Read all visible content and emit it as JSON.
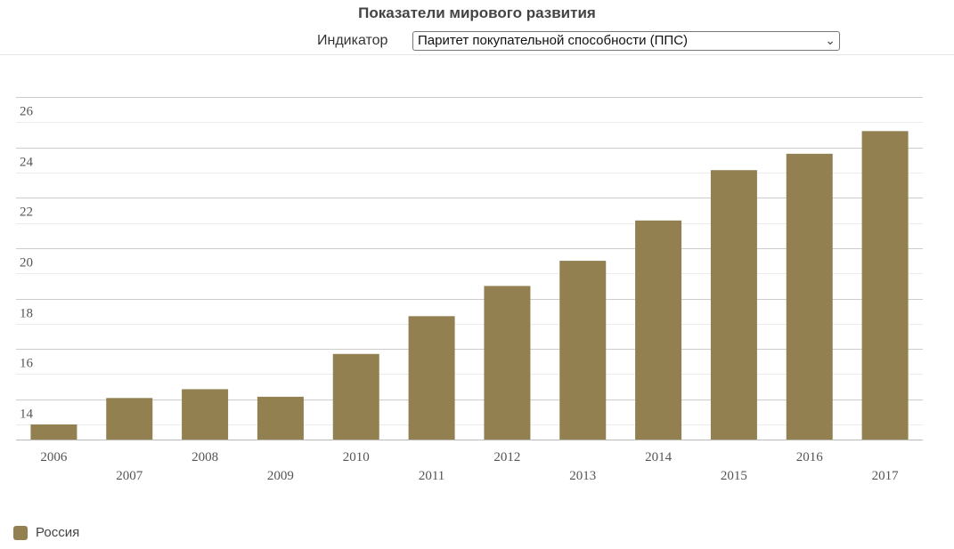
{
  "header": {
    "title": "Показатели мирового развития",
    "indicator_label": "Индикатор",
    "indicator_value": "Паритет покупательной способности (ППС)"
  },
  "colors": {
    "bar": "#928050",
    "grid_major": "#cccccc",
    "grid_minor": "#ececec",
    "axis": "#bbbbbb"
  },
  "chart_data": {
    "type": "bar",
    "title": "Показатели мирового развития",
    "xlabel": "",
    "ylabel": "",
    "categories": [
      "2006",
      "2007",
      "2008",
      "2009",
      "2010",
      "2011",
      "2012",
      "2013",
      "2014",
      "2015",
      "2016",
      "2017"
    ],
    "series": [
      {
        "name": "Россия",
        "values": [
          13.0,
          14.05,
          14.4,
          14.1,
          15.8,
          17.3,
          18.5,
          19.5,
          21.1,
          23.1,
          23.75,
          24.65
        ]
      }
    ],
    "ylim": [
      12.4,
      26.5
    ],
    "yticks": [
      14,
      16,
      18,
      20,
      22,
      24,
      26
    ],
    "grid": true,
    "legend": "bottom-left"
  }
}
